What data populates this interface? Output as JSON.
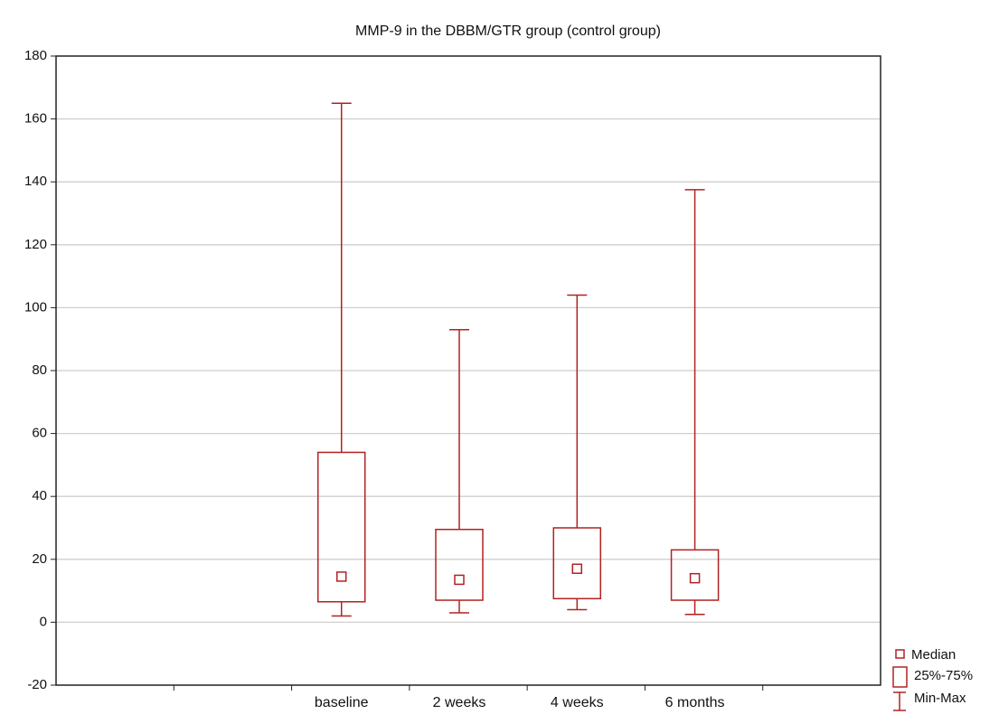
{
  "chart_data": {
    "type": "box",
    "title": "MMP-9 in the DBBM/GTR group (control group)",
    "xlabel": "",
    "ylabel": "",
    "ylim": [
      -20,
      180
    ],
    "yticks": [
      -20,
      0,
      20,
      40,
      60,
      80,
      100,
      120,
      140,
      160,
      180
    ],
    "grid": true,
    "categories": [
      "baseline",
      "2 weeks",
      "4 weeks",
      "6 months"
    ],
    "boxes": [
      {
        "label": "baseline",
        "min": 2,
        "q1": 6.5,
        "median": 14.5,
        "q3": 54,
        "max": 165
      },
      {
        "label": "2 weeks",
        "min": 3,
        "q1": 7,
        "median": 13.5,
        "q3": 29.5,
        "max": 93
      },
      {
        "label": "4 weeks",
        "min": 4,
        "q1": 7.5,
        "median": 17,
        "q3": 30,
        "max": 104
      },
      {
        "label": "6 months",
        "min": 2.5,
        "q1": 7,
        "median": 14,
        "q3": 23,
        "max": 137.5
      }
    ],
    "legend": {
      "position": "bottom-right",
      "entries": [
        "Median",
        "25%-75%",
        "Min-Max"
      ]
    },
    "colors": {
      "box": "#b22222",
      "grid": "#cfcfcf",
      "axis": "#222222"
    }
  }
}
